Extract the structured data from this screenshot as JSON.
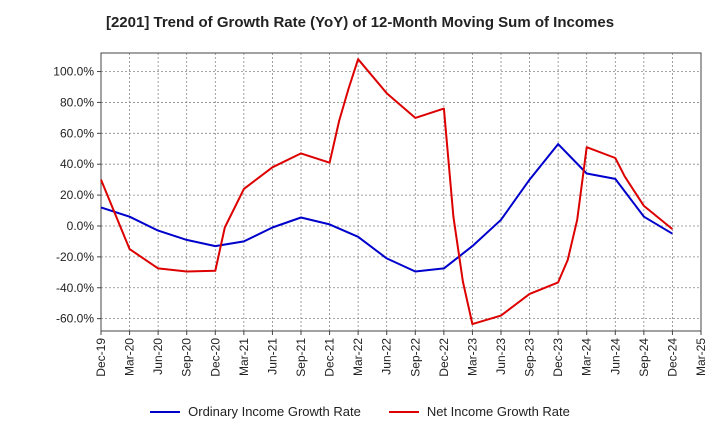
{
  "chart_data": {
    "type": "line",
    "title": "[2201]  Trend of Growth Rate (YoY) of 12-Month Moving Sum of Incomes",
    "xlabel": "",
    "ylabel": "",
    "ylim": [
      -68,
      112
    ],
    "y_ticks": [
      100,
      80,
      60,
      40,
      20,
      0,
      -20,
      -40,
      -60
    ],
    "y_tick_labels": [
      "100.0%",
      "80.0%",
      "60.0%",
      "40.0%",
      "20.0%",
      "0.0%",
      "-20.0%",
      "-40.0%",
      "-60.0%"
    ],
    "x_ticks": [
      "Dec-19",
      "Mar-20",
      "Jun-20",
      "Sep-20",
      "Dec-20",
      "Mar-21",
      "Jun-21",
      "Sep-21",
      "Dec-21",
      "Mar-22",
      "Jun-22",
      "Sep-22",
      "Dec-22",
      "Mar-23",
      "Jun-23",
      "Sep-23",
      "Dec-23",
      "Mar-24",
      "Jun-24",
      "Sep-24",
      "Dec-24",
      "Mar-25"
    ],
    "x_range": [
      "Dec-19",
      "Mar-25"
    ],
    "grid": true,
    "legend_position": "bottom",
    "series": [
      {
        "name": "Ordinary Income Growth Rate",
        "color": "#0000cc",
        "points": [
          [
            "Dec-19",
            12
          ],
          [
            "Mar-20",
            6
          ],
          [
            "Jun-20",
            -3
          ],
          [
            "Sep-20",
            -9
          ],
          [
            "Dec-20",
            -13
          ],
          [
            "Mar-21",
            -10
          ],
          [
            "Jun-21",
            -1
          ],
          [
            "Sep-21",
            5.5
          ],
          [
            "Dec-21",
            1
          ],
          [
            "Mar-22",
            -7
          ],
          [
            "Jun-22",
            -21
          ],
          [
            "Sep-22",
            -29.5
          ],
          [
            "Dec-22",
            -27.5
          ],
          [
            "Mar-23",
            -13
          ],
          [
            "Jun-23",
            4
          ],
          [
            "Sep-23",
            30
          ],
          [
            "Dec-23",
            53
          ],
          [
            "Mar-24",
            34
          ],
          [
            "Jun-24",
            30.5
          ],
          [
            "Sep-24",
            6
          ],
          [
            "Dec-24",
            -5
          ]
        ]
      },
      {
        "name": "Net Income Growth Rate",
        "color": "#dd0000",
        "points": [
          [
            "Dec-19",
            30
          ],
          [
            "Mar-20",
            -15
          ],
          [
            "Jun-20",
            -27.5
          ],
          [
            "Sep-20",
            -29.5
          ],
          [
            "Dec-20",
            -29
          ],
          [
            "Jan-21",
            -1
          ],
          [
            "Mar-21",
            24
          ],
          [
            "Jun-21",
            38
          ],
          [
            "Sep-21",
            47
          ],
          [
            "Dec-21",
            41
          ],
          [
            "Jan-22",
            68
          ],
          [
            "Feb-22",
            89
          ],
          [
            "Mar-22",
            108
          ],
          [
            "Jun-22",
            86
          ],
          [
            "Sep-22",
            70
          ],
          [
            "Dec-22",
            76
          ],
          [
            "Jan-23",
            6
          ],
          [
            "Feb-23",
            -36
          ],
          [
            "Mar-23",
            -63.5
          ],
          [
            "Jun-23",
            -58
          ],
          [
            "Sep-23",
            -44
          ],
          [
            "Dec-23",
            -36.5
          ],
          [
            "Jan-24",
            -22
          ],
          [
            "Feb-24",
            4
          ],
          [
            "Mar-24",
            51
          ],
          [
            "Jun-24",
            44
          ],
          [
            "Jul-24",
            32
          ],
          [
            "Sep-24",
            13
          ],
          [
            "Dec-24",
            -2
          ]
        ]
      }
    ]
  }
}
